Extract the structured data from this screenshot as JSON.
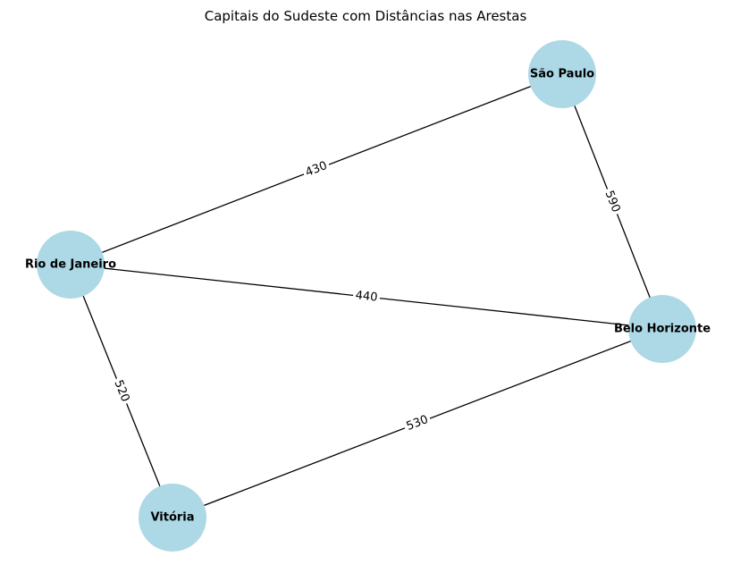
{
  "title": "Capitais do Sudeste com Distâncias nas Arestas",
  "colors": {
    "node_fill": "#add8e6",
    "edge": "#000000",
    "label_bg": "#ffffff"
  },
  "nodes": [
    {
      "id": "sp",
      "label": "São Paulo"
    },
    {
      "id": "rj",
      "label": "Rio de Janeiro"
    },
    {
      "id": "bh",
      "label": "Belo Horizonte"
    },
    {
      "id": "vt",
      "label": "Vitória"
    }
  ],
  "edges": [
    {
      "id": "rj-sp",
      "source": "rj",
      "target": "sp",
      "weight": "430"
    },
    {
      "id": "sp-bh",
      "source": "sp",
      "target": "bh",
      "weight": "590"
    },
    {
      "id": "rj-bh",
      "source": "rj",
      "target": "bh",
      "weight": "440"
    },
    {
      "id": "rj-vt",
      "source": "rj",
      "target": "vt",
      "weight": "520"
    },
    {
      "id": "vt-bh",
      "source": "vt",
      "target": "bh",
      "weight": "530"
    }
  ]
}
